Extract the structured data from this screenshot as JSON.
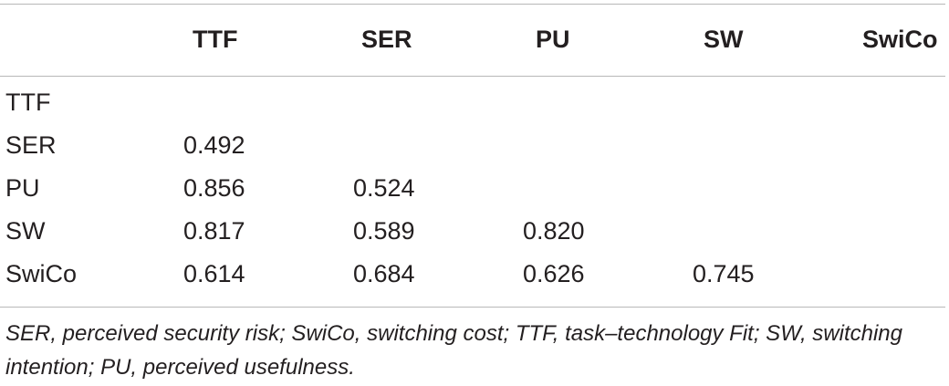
{
  "table": {
    "columns": [
      "TTF",
      "SER",
      "PU",
      "SW",
      "SwiCo"
    ],
    "rows": [
      {
        "label": "TTF",
        "values": [
          "",
          "",
          "",
          "",
          ""
        ]
      },
      {
        "label": "SER",
        "values": [
          "0.492",
          "",
          "",
          "",
          ""
        ]
      },
      {
        "label": "PU",
        "values": [
          "0.856",
          "0.524",
          "",
          "",
          ""
        ]
      },
      {
        "label": "SW",
        "values": [
          "0.817",
          "0.589",
          "0.820",
          "",
          ""
        ]
      },
      {
        "label": "SwiCo",
        "values": [
          "0.614",
          "0.684",
          "0.626",
          "0.745",
          ""
        ]
      }
    ]
  },
  "footnote": "SER, perceived security risk; SwiCo, switching cost; TTF, task–technology Fit; SW, switching intention; PU, perceived usefulness."
}
